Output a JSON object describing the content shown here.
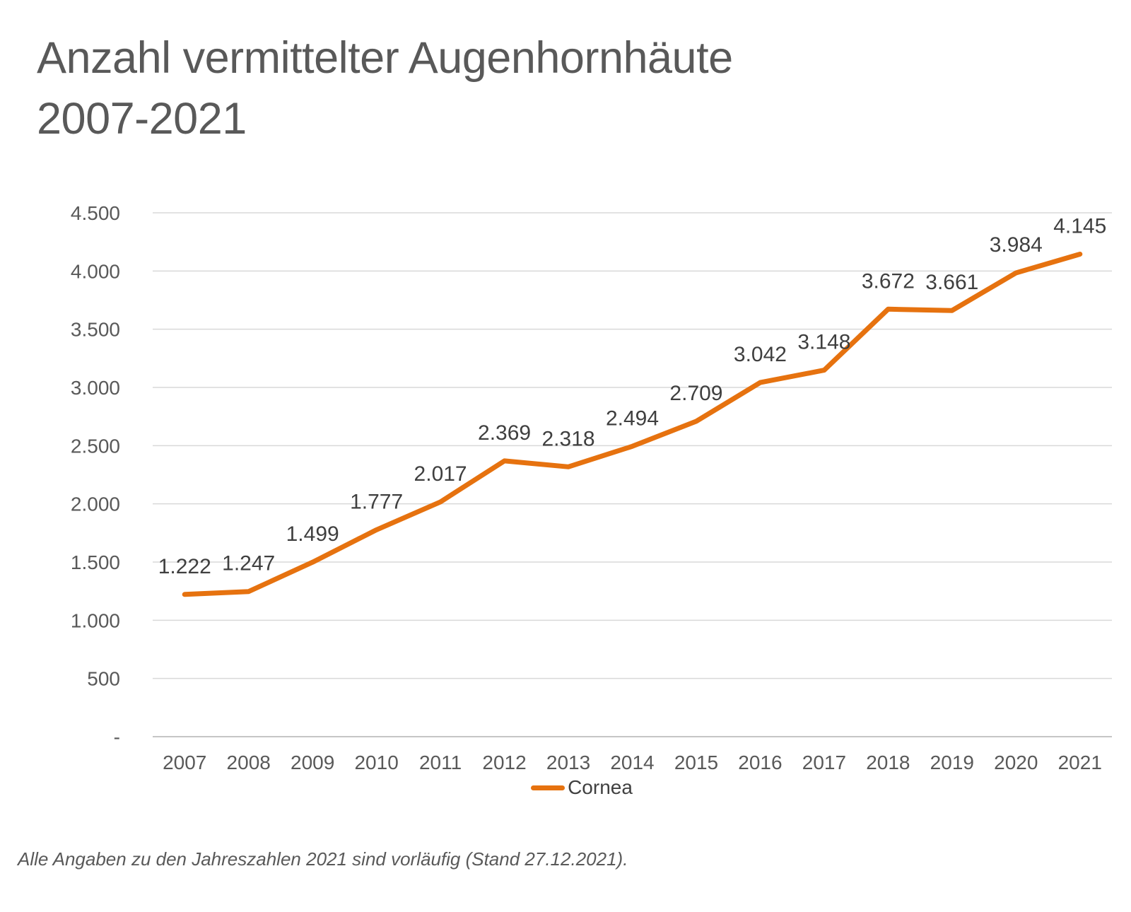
{
  "title": {
    "line1": "Anzahl vermittelter Augenhornhäute",
    "line2": "2007-2021"
  },
  "chart_data": {
    "type": "line",
    "title": "Anzahl vermittelter Augenhornhäute 2007-2021",
    "categories": [
      "2007",
      "2008",
      "2009",
      "2010",
      "2011",
      "2012",
      "2013",
      "2014",
      "2015",
      "2016",
      "2017",
      "2018",
      "2019",
      "2020",
      "2021"
    ],
    "series": [
      {
        "name": "Cornea",
        "values": [
          1222,
          1247,
          1499,
          1777,
          2017,
          2369,
          2318,
          2494,
          2709,
          3042,
          3148,
          3672,
          3661,
          3984,
          4145
        ],
        "data_labels": [
          "1.222",
          "1.247",
          "1.499",
          "1.777",
          "2.017",
          "2.369",
          "2.318",
          "2.494",
          "2.709",
          "3.042",
          "3.148",
          "3.672",
          "3.661",
          "3.984",
          "4.145"
        ]
      }
    ],
    "xlabel": "",
    "ylabel": "",
    "y_axis": {
      "min": 0,
      "max": 4500,
      "step": 500,
      "tick_labels": [
        "-",
        "500",
        "1.000",
        "1.500",
        "2.000",
        "2.500",
        "3.000",
        "3.500",
        "4.000",
        "4.500"
      ]
    },
    "grid": true,
    "legend_position": "bottom"
  },
  "legend": {
    "label": "Cornea"
  },
  "footnote": "Alle Angaben zu den Jahreszahlen 2021 sind vorläufig (Stand 27.12.2021).",
  "colors": {
    "line": "#E6720F",
    "grid": "#D9D9D9",
    "axis_line": "#C6C6C6",
    "title_text": "#595959",
    "axis_text": "#595959",
    "data_label_text": "#3F3F3F"
  }
}
